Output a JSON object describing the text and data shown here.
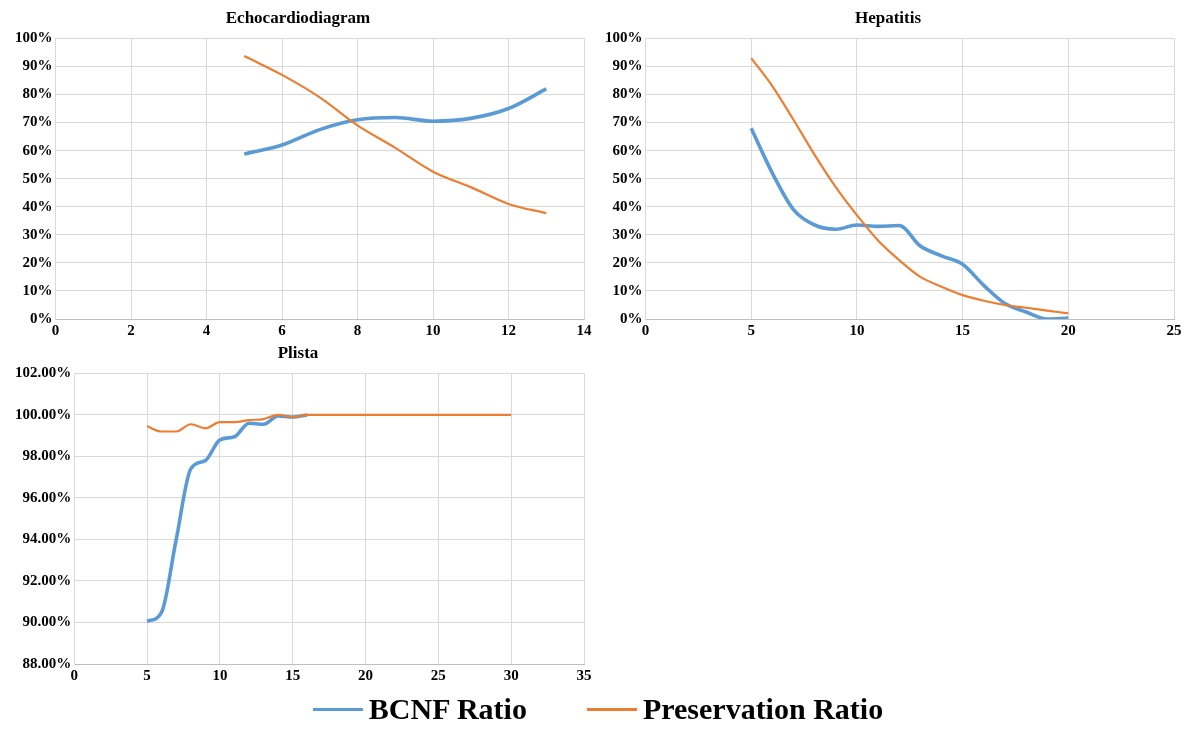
{
  "chart_data": [
    {
      "type": "line",
      "title": "Echocardiodiagram",
      "x": [
        5,
        6,
        7,
        8,
        9,
        10,
        11,
        12,
        13
      ],
      "series": [
        {
          "name": "BCNF Ratio",
          "color": "#5b9bd5",
          "values": [
            58.8,
            62,
            67.5,
            71,
            71.8,
            70.5,
            71.5,
            75,
            82
          ]
        },
        {
          "name": "Preservation Ratio",
          "color": "#ed7d31",
          "values": [
            93.7,
            87,
            79,
            69,
            61,
            52.5,
            47,
            41,
            37.7
          ]
        }
      ],
      "xlim": [
        0,
        14
      ],
      "xticks": [
        0,
        2,
        4,
        6,
        8,
        10,
        12,
        14
      ],
      "ylim": [
        0,
        100
      ],
      "yticks": [
        {
          "value": 0,
          "label": "0%"
        },
        {
          "value": 10,
          "label": "10%"
        },
        {
          "value": 20,
          "label": "20%"
        },
        {
          "value": 30,
          "label": "30%"
        },
        {
          "value": 40,
          "label": "40%"
        },
        {
          "value": 50,
          "label": "50%"
        },
        {
          "value": 60,
          "label": "60%"
        },
        {
          "value": 70,
          "label": "70%"
        },
        {
          "value": 80,
          "label": "80%"
        },
        {
          "value": 90,
          "label": "90%"
        },
        {
          "value": 100,
          "label": "100%"
        }
      ],
      "grid": true,
      "legend": "bottom"
    },
    {
      "type": "line",
      "title": "Hepatitis",
      "x": [
        5,
        6,
        7,
        8,
        9,
        10,
        11,
        12,
        13,
        14,
        15,
        16,
        17,
        18,
        19,
        20
      ],
      "series": [
        {
          "name": "BCNF Ratio",
          "color": "#5b9bd5",
          "values": [
            68,
            52,
            39,
            33.5,
            32,
            33.5,
            33,
            33.3,
            26,
            22.5,
            19.5,
            12,
            5.5,
            2.5,
            0,
            0.3
          ]
        },
        {
          "name": "Preservation Ratio",
          "color": "#ed7d31",
          "values": [
            93,
            83,
            71,
            58.5,
            47,
            37,
            28,
            21,
            15,
            11.5,
            8.5,
            6.5,
            5,
            4,
            3,
            2
          ]
        }
      ],
      "xlim": [
        0,
        25
      ],
      "xticks": [
        0,
        5,
        10,
        15,
        20,
        25
      ],
      "ylim": [
        0,
        100
      ],
      "yticks": [
        {
          "value": 0,
          "label": "0%"
        },
        {
          "value": 10,
          "label": "10%"
        },
        {
          "value": 20,
          "label": "20%"
        },
        {
          "value": 30,
          "label": "30%"
        },
        {
          "value": 40,
          "label": "40%"
        },
        {
          "value": 50,
          "label": "50%"
        },
        {
          "value": 60,
          "label": "60%"
        },
        {
          "value": 70,
          "label": "70%"
        },
        {
          "value": 80,
          "label": "80%"
        },
        {
          "value": 90,
          "label": "90%"
        },
        {
          "value": 100,
          "label": "100%"
        }
      ],
      "grid": true,
      "legend": "bottom"
    },
    {
      "type": "line",
      "title": "Plista",
      "x": [
        5,
        6,
        7,
        8,
        9,
        10,
        11,
        12,
        13,
        14,
        15,
        16,
        17,
        18,
        19,
        20,
        21,
        22,
        23,
        24,
        25,
        26,
        27,
        28,
        29,
        30
      ],
      "series": [
        {
          "name": "BCNF Ratio",
          "color": "#5b9bd5",
          "values": [
            90.05,
            90.5,
            94,
            97.4,
            97.8,
            98.8,
            98.95,
            99.6,
            99.55,
            99.95,
            99.9,
            100,
            null,
            null,
            null,
            null,
            null,
            null,
            null,
            null,
            null,
            null,
            null,
            null,
            null,
            null
          ]
        },
        {
          "name": "Preservation Ratio",
          "color": "#ed7d31",
          "values": [
            99.45,
            99.2,
            99.2,
            99.55,
            99.35,
            99.65,
            99.65,
            99.75,
            99.8,
            100,
            99.9,
            100,
            100,
            100,
            100,
            100,
            100,
            100,
            100,
            100,
            100,
            100,
            100,
            100,
            100,
            100
          ]
        }
      ],
      "xlim": [
        0,
        35
      ],
      "xticks": [
        0,
        5,
        10,
        15,
        20,
        25,
        30,
        35
      ],
      "ylim": [
        88,
        102
      ],
      "yticks": [
        {
          "value": 88,
          "label": "88.00%"
        },
        {
          "value": 90,
          "label": "90.00%"
        },
        {
          "value": 92,
          "label": "92.00%"
        },
        {
          "value": 94,
          "label": "94.00%"
        },
        {
          "value": 96,
          "label": "96.00%"
        },
        {
          "value": 98,
          "label": "98.00%"
        },
        {
          "value": 100,
          "label": "100.00%"
        },
        {
          "value": 102,
          "label": "102.00%"
        }
      ],
      "grid": true,
      "legend": "bottom"
    }
  ]
}
